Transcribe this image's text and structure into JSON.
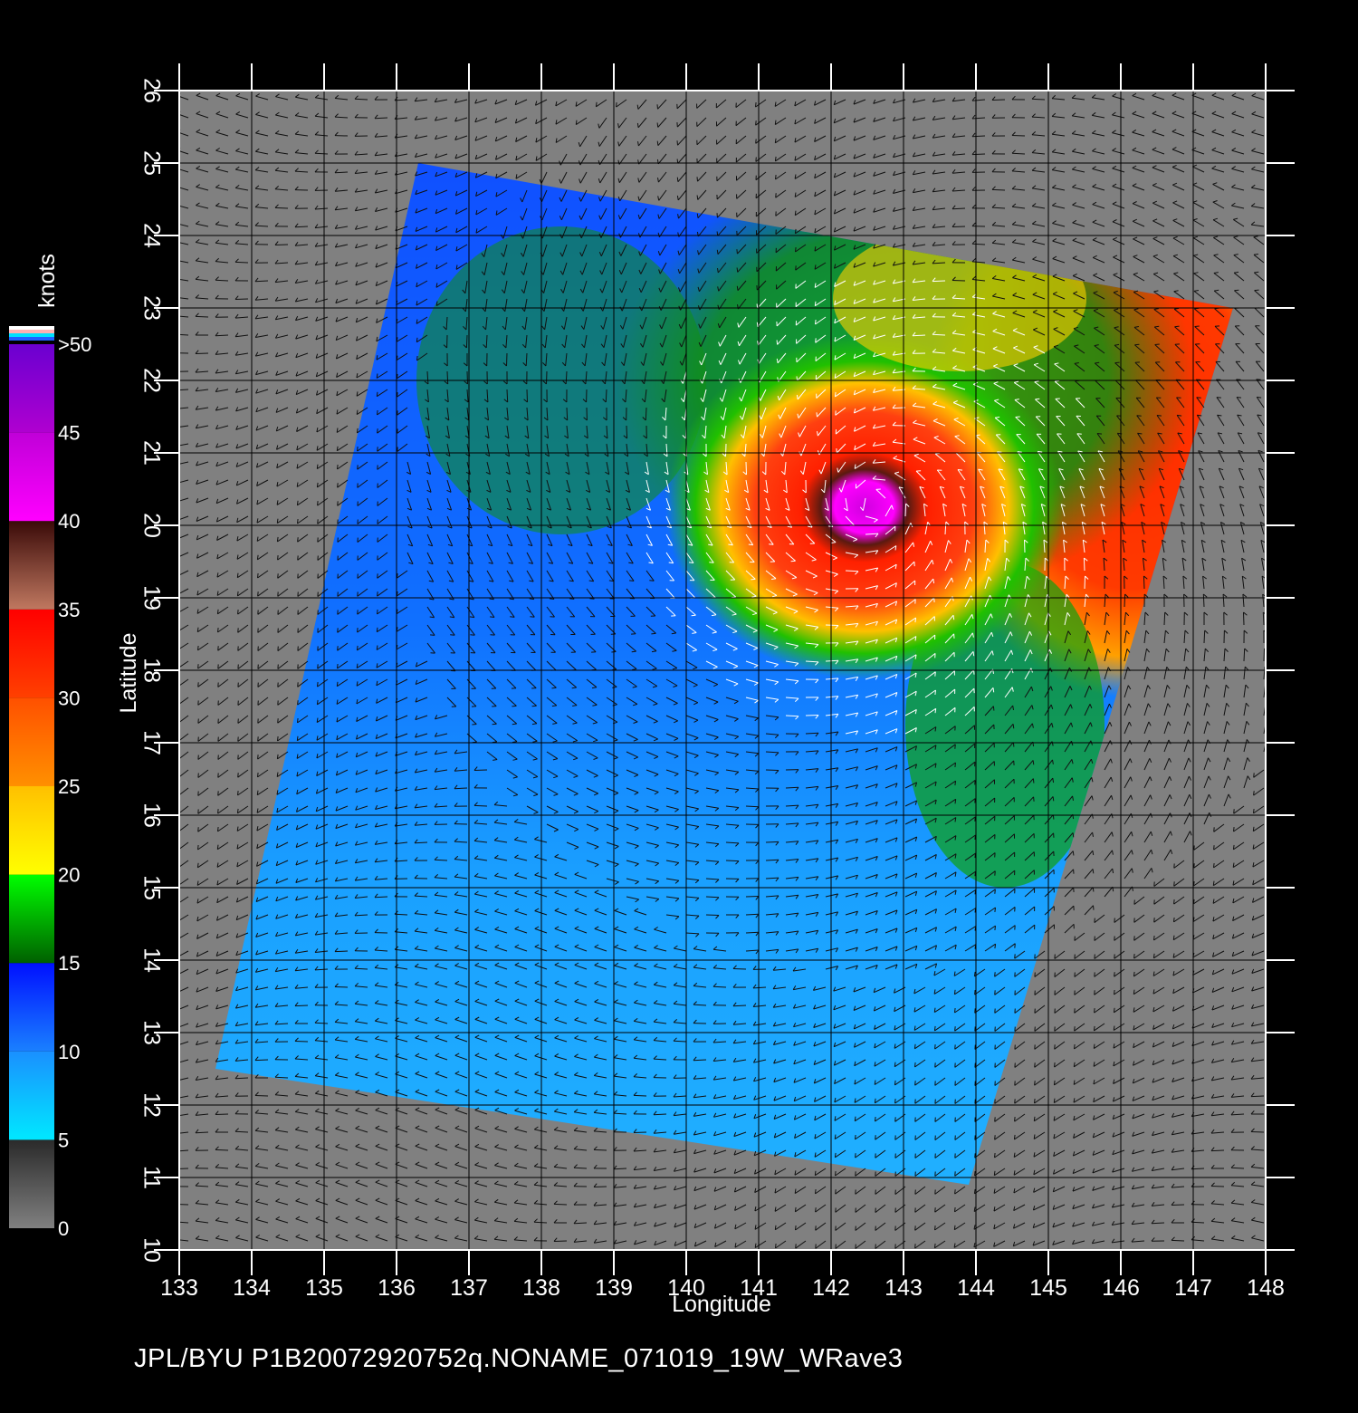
{
  "colorbar": {
    "unit": "knots",
    "labels": [
      "0",
      "5",
      "10",
      "15",
      "20",
      "25",
      "30",
      "35",
      "40",
      "45",
      ">50"
    ],
    "segments": [
      {
        "from": 0,
        "to": 5,
        "c1": "#808080",
        "c2": "#2a2a2a"
      },
      {
        "from": 5,
        "to": 10,
        "c1": "#00e8ff",
        "c2": "#1a90ff"
      },
      {
        "from": 10,
        "to": 15,
        "c1": "#1a80ff",
        "c2": "#0010ff"
      },
      {
        "from": 15,
        "to": 20,
        "c1": "#006000",
        "c2": "#00ff00"
      },
      {
        "from": 20,
        "to": 25,
        "c1": "#ffff00",
        "c2": "#ffc000"
      },
      {
        "from": 25,
        "to": 30,
        "c1": "#ff9000",
        "c2": "#ff5000"
      },
      {
        "from": 30,
        "to": 35,
        "c1": "#ff4000",
        "c2": "#ff0000"
      },
      {
        "from": 35,
        "to": 40,
        "c1": "#c07860",
        "c2": "#3a0a08"
      },
      {
        "from": 40,
        "to": 45,
        "c1": "#ff00ff",
        "c2": "#c000d8"
      },
      {
        "from": 45,
        "to": 50,
        "c1": "#b000d0",
        "c2": "#6a00d0"
      }
    ],
    "cap_colors": [
      "#ffffff",
      "#ffb0b0",
      "#00e0ff",
      "#2060ff"
    ]
  },
  "axes": {
    "x_label": "Longitude",
    "y_label": "Latitude",
    "x_ticks": [
      "133",
      "134",
      "135",
      "136",
      "137",
      "138",
      "139",
      "140",
      "141",
      "142",
      "143",
      "144",
      "145",
      "146",
      "147",
      "148"
    ],
    "y_ticks": [
      "10",
      "11",
      "12",
      "13",
      "14",
      "15",
      "16",
      "17",
      "18",
      "19",
      "20",
      "21",
      "22",
      "23",
      "24",
      "25",
      "26"
    ],
    "x_range": [
      133,
      148
    ],
    "y_range": [
      10,
      26
    ]
  },
  "colors": {
    "background": "#000000",
    "land_or_nodata": "#808080",
    "grid": "#000000",
    "frame": "#ffffff"
  },
  "swath": {
    "corners_lonlat": [
      [
        136.3,
        25.0
      ],
      [
        147.55,
        23.0
      ],
      [
        143.9,
        10.9
      ],
      [
        133.5,
        12.5
      ]
    ]
  },
  "storm": {
    "center_lonlat": [
      142.6,
      20.3
    ],
    "max_wind_knots": 45
  },
  "footer": "JPL/BYU  P1B20072920752q.NONAME_071019_19W_WRave3"
}
